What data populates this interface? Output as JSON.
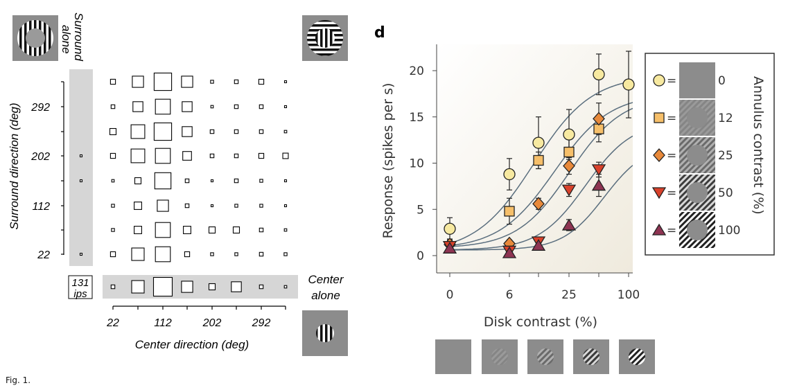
{
  "figure_caption": "Fig. 1.",
  "chart_data": [
    {
      "type": "heatmap",
      "panel": "left",
      "encoding": "square size ~ response",
      "xlabel": "Center direction (deg)",
      "ylabel": "Surround direction (deg)",
      "x_ticks": [
        "22",
        "112",
        "202",
        "292"
      ],
      "y_ticks": [
        "292",
        "202",
        "112",
        "22"
      ],
      "x": [
        22,
        67,
        112,
        157,
        202,
        247,
        292,
        337
      ],
      "y": [
        337,
        292,
        247,
        202,
        157,
        112,
        67,
        22
      ],
      "surround_alone_label": "Surround alone",
      "center_alone_label": "Center alone",
      "scale_label": "131 ips",
      "values": [
        [
          0.2,
          0.45,
          0.7,
          0.45,
          0.12,
          0.15,
          0.2,
          0.08
        ],
        [
          0.15,
          0.4,
          0.6,
          0.4,
          0.1,
          0.15,
          0.15,
          0.06
        ],
        [
          0.25,
          0.55,
          0.7,
          0.4,
          0.15,
          0.15,
          0.15,
          0.1
        ],
        [
          0.2,
          0.55,
          0.6,
          0.35,
          0.15,
          0.15,
          0.2,
          0.22
        ],
        [
          0.1,
          0.25,
          0.65,
          0.15,
          0.06,
          0.15,
          0.12,
          0.06
        ],
        [
          0.12,
          0.3,
          0.45,
          0.15,
          0.06,
          0.12,
          0.12,
          0.06
        ],
        [
          0.12,
          0.3,
          0.6,
          0.3,
          0.25,
          0.25,
          0.15,
          0.1
        ],
        [
          0.2,
          0.5,
          0.6,
          0.2,
          0.12,
          0.12,
          0.15,
          0.12
        ]
      ],
      "surround_alone_values": [
        0,
        0,
        0,
        0.08,
        0.06,
        0,
        0,
        0.08
      ],
      "center_alone_values": [
        0.15,
        0.5,
        0.75,
        0.45,
        0.25,
        0.4,
        0.15,
        0.1
      ]
    },
    {
      "type": "scatter",
      "panel": "d",
      "panel_label": "d",
      "xlabel": "Disk contrast (%)",
      "ylabel": "Response (spikes per s)",
      "x_ticks": [
        "0",
        "6",
        "25",
        "100"
      ],
      "y_ticks": [
        "0",
        "5",
        "10",
        "15",
        "20"
      ],
      "x_positions": [
        0,
        6,
        12,
        25,
        50,
        100
      ],
      "ylim": [
        -1.5,
        22.5
      ],
      "legend_title": "Annulus contrast (%)",
      "legend_placement": "right",
      "series": [
        {
          "name": "0",
          "marker": "circle",
          "color": "#f7e9a0",
          "x": [
            0,
            6,
            12,
            25,
            50,
            100
          ],
          "y": [
            2.9,
            8.8,
            12.2,
            13.1,
            19.6,
            18.5
          ],
          "err": [
            1.2,
            1.7,
            2.8,
            2.7,
            2.2,
            3.6
          ]
        },
        {
          "name": "12",
          "marker": "square",
          "color": "#f6bf6a",
          "x": [
            6,
            12,
            25,
            50
          ],
          "y": [
            4.8,
            10.3,
            11.2,
            13.7
          ],
          "err": [
            1.4,
            0.9,
            1.4,
            1.4
          ]
        },
        {
          "name": "25",
          "marker": "diamond",
          "color": "#e8893a",
          "x": [
            0,
            6,
            12,
            25,
            50
          ],
          "y": [
            1.2,
            1.3,
            5.6,
            9.7,
            14.8
          ],
          "err": [
            0.6,
            0.4,
            0.6,
            0.9,
            1.7
          ]
        },
        {
          "name": "50",
          "marker": "triangle-down",
          "color": "#d9412b",
          "x": [
            0,
            6,
            12,
            25,
            50
          ],
          "y": [
            1.0,
            0.5,
            1.5,
            7.1,
            9.3
          ],
          "err": [
            0.6,
            0.5,
            0.5,
            0.7,
            0.8
          ]
        },
        {
          "name": "100",
          "marker": "triangle-up",
          "color": "#8e3452",
          "x": [
            0,
            6,
            12,
            25,
            50
          ],
          "y": [
            0.8,
            0.3,
            1.1,
            3.3,
            7.6
          ],
          "err": [
            0.5,
            0.4,
            0.5,
            0.6,
            1.2
          ]
        }
      ]
    }
  ]
}
